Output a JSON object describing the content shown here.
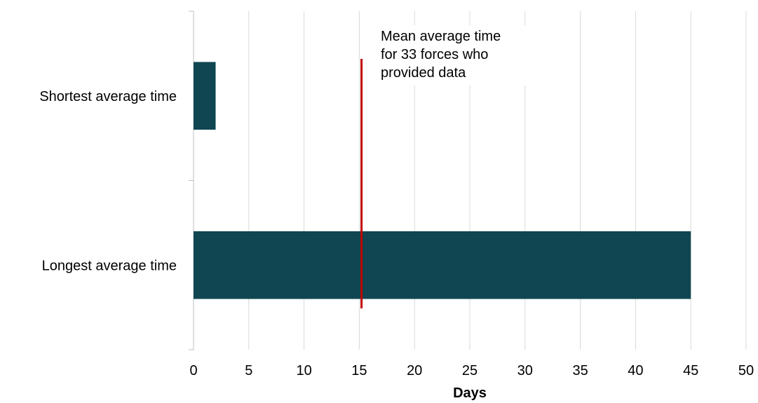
{
  "chart_data": {
    "type": "bar",
    "orientation": "horizontal",
    "categories": [
      "Shortest average time",
      "Longest average time"
    ],
    "values": [
      2,
      45
    ],
    "xlabel": "Days",
    "xlim": [
      0,
      50
    ],
    "xticks": [
      0,
      5,
      10,
      15,
      20,
      25,
      30,
      35,
      40,
      45,
      50
    ],
    "grid": "vertical",
    "bar_color": "#0f4651",
    "reference_line": {
      "value": 15.2,
      "color": "#c00000",
      "annotation": [
        "Mean average time",
        "for 33 forces who",
        "provided data"
      ]
    }
  }
}
